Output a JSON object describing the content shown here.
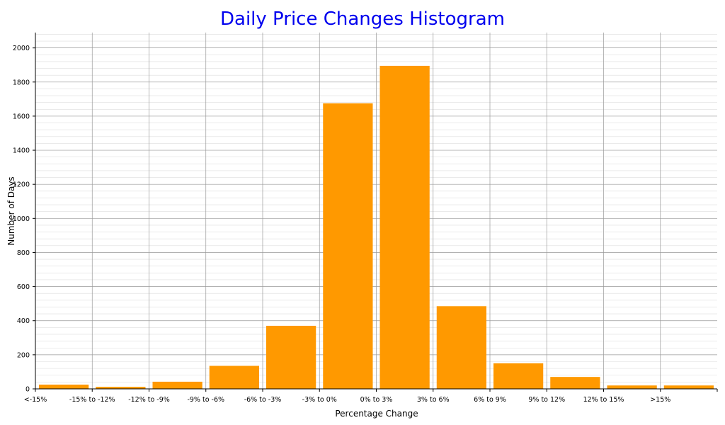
{
  "chart_data": {
    "type": "bar",
    "title": "Daily Price Changes Histogram",
    "xlabel": "Percentage Change",
    "ylabel": "Number of Days",
    "categories": [
      "<-15%",
      "-15% to -12%",
      "-12% to -9%",
      "-9% to -6%",
      "-6% to -3%",
      "-3% to 0%",
      "0% to 3%",
      "3% to 6%",
      "6% to 9%",
      "9% to 12%",
      "12% to 15%",
      ">15%"
    ],
    "values": [
      25,
      12,
      42,
      135,
      370,
      1675,
      1895,
      485,
      150,
      70,
      20,
      20
    ],
    "yticks": [
      "0",
      "200",
      "400",
      "600",
      "800",
      "1000",
      "1200",
      "1400",
      "1600",
      "1800",
      "2000"
    ],
    "ylim": [
      0,
      2090
    ],
    "bar_color": "#ff9900",
    "title_color": "#0000ee",
    "grid": true
  }
}
